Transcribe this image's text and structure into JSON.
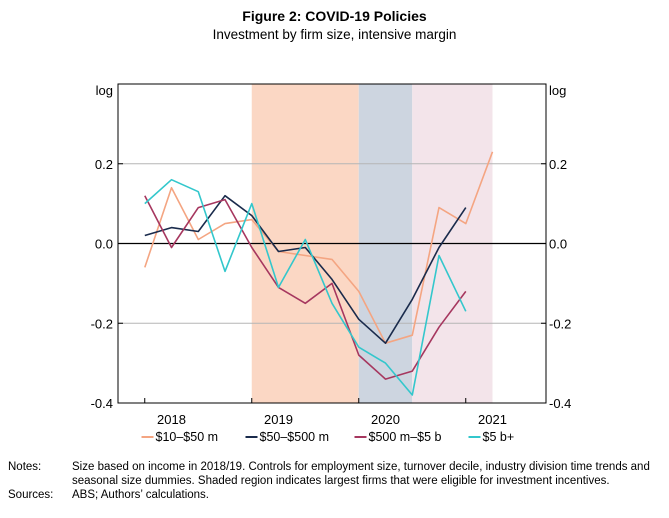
{
  "title": "Figure 2: COVID-19 Policies",
  "subtitle": "Investment by firm size, intensive margin",
  "notes_label": "Notes:",
  "notes_text": "Size based on income in 2018/19. Controls for employment size, turnover decile, industry division time trends and seasonal size dummies. Shaded region indicates largest firms that were eligible for investment incentives.",
  "sources_label": "Sources:",
  "sources_text": "ABS; Authors’ calculations.",
  "chart_data": {
    "type": "line",
    "left_axis_unit": "log",
    "right_axis_unit": "log",
    "ylim": [
      -0.4,
      0.4
    ],
    "yticks": [
      {
        "value": 0.2,
        "label": "0.2"
      },
      {
        "value": 0.0,
        "label": "0.0"
      },
      {
        "value": -0.2,
        "label": "-0.2"
      },
      {
        "value": -0.4,
        "label": "-0.4"
      }
    ],
    "xlim": [
      2017.5,
      2021.5
    ],
    "xticks": [
      {
        "value": 2018,
        "label": "2018"
      },
      {
        "value": 2019,
        "label": "2019"
      },
      {
        "value": 2020,
        "label": "2020"
      },
      {
        "value": 2021,
        "label": "2021"
      }
    ],
    "grid": true,
    "legend_position": "bottom",
    "shaded_regions": [
      {
        "from": 2018.75,
        "to": 2019.75,
        "color": "#fbd7c4"
      },
      {
        "from": 2019.75,
        "to": 2020.25,
        "color": "#cdd5e0"
      },
      {
        "from": 2020.25,
        "to": 2021.0,
        "color": "#f3e4ea"
      }
    ],
    "x": [
      2017.75,
      2018.0,
      2018.25,
      2018.5,
      2018.75,
      2019.0,
      2019.25,
      2019.5,
      2019.75,
      2020.0,
      2020.25,
      2020.5,
      2020.75,
      2021.0
    ],
    "series": [
      {
        "name": "$10–$50 m",
        "color": "#f4a582",
        "values": [
          -0.06,
          0.14,
          0.01,
          0.05,
          0.06,
          -0.02,
          -0.03,
          -0.04,
          -0.12,
          -0.25,
          -0.23,
          0.09,
          0.05,
          0.23
        ]
      },
      {
        "name": "$50–$500 m",
        "color": "#1a2b4c",
        "values": [
          0.02,
          0.04,
          0.03,
          0.12,
          0.07,
          -0.02,
          -0.01,
          -0.09,
          -0.19,
          -0.25,
          -0.14,
          -0.01,
          0.09,
          null
        ]
      },
      {
        "name": "$500 m–$5 b",
        "color": "#a6375f",
        "values": [
          0.12,
          -0.01,
          0.09,
          0.11,
          -0.01,
          -0.11,
          -0.15,
          -0.1,
          -0.28,
          -0.34,
          -0.32,
          -0.21,
          -0.12,
          null
        ]
      },
      {
        "name": "$5 b+",
        "color": "#33c7cc",
        "values": [
          0.1,
          0.16,
          0.13,
          -0.07,
          0.1,
          -0.11,
          0.01,
          -0.15,
          -0.26,
          -0.3,
          -0.38,
          -0.03,
          -0.17,
          null
        ]
      }
    ]
  }
}
